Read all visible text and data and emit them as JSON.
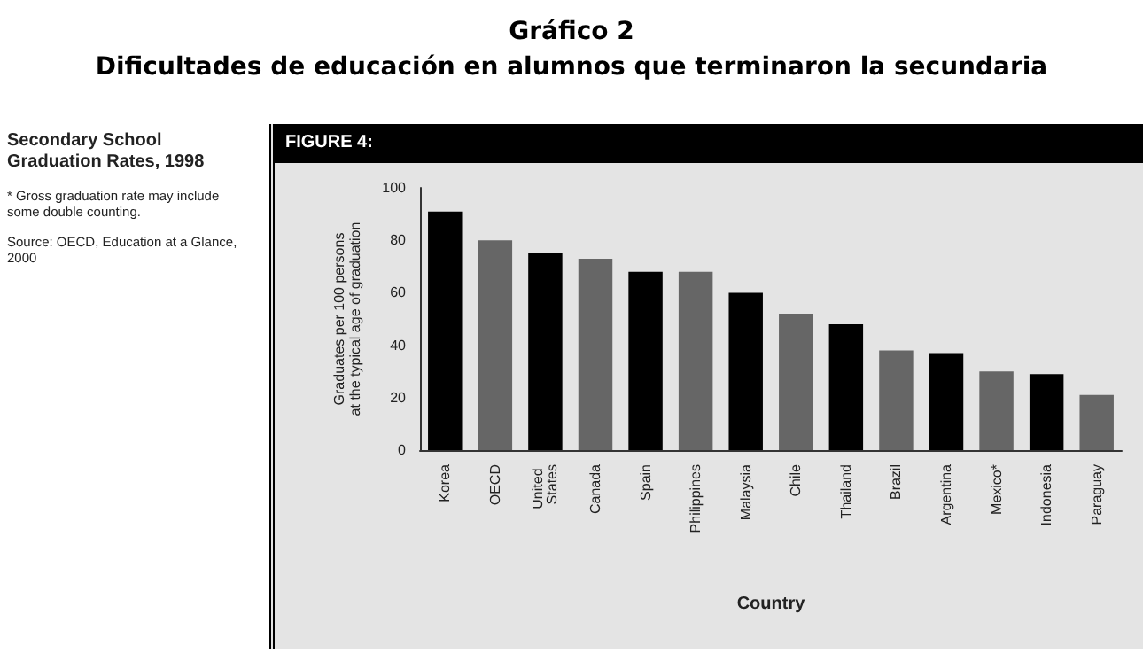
{
  "chart_data": {
    "type": "bar",
    "title": "Gráfico 2",
    "subtitle": "Dificultades de educación en alumnos que terminaron la secundaria",
    "xlabel": "Country",
    "ylabel": "Graduates per 100 persons\nat the typical age of graduation",
    "annotations": [
      "FIGURE 4:",
      "Secondary School Graduation Rates, 1998",
      "* Gross graduation rate may include some double counting.",
      "Source: OECD, Education at a Glance, 2000"
    ],
    "categories": [
      "Korea",
      "OECD",
      "United States",
      "Canada",
      "Spain",
      "Philippines",
      "Malaysia",
      "Chile",
      "Thailand",
      "Brazil",
      "Argentina",
      "Mexico*",
      "Indonesia",
      "Paraguay"
    ],
    "values": [
      91,
      80,
      75,
      73,
      68,
      68,
      60,
      52,
      48,
      38,
      37,
      30,
      29,
      21
    ],
    "colors": [
      "#000000",
      "#666666",
      "#000000",
      "#666666",
      "#000000",
      "#666666",
      "#000000",
      "#666666",
      "#000000",
      "#666666",
      "#000000",
      "#666666",
      "#000000",
      "#666666"
    ],
    "ylim": [
      0,
      100
    ],
    "yticks": [
      0,
      20,
      40,
      60,
      80,
      100
    ],
    "grid": false
  }
}
